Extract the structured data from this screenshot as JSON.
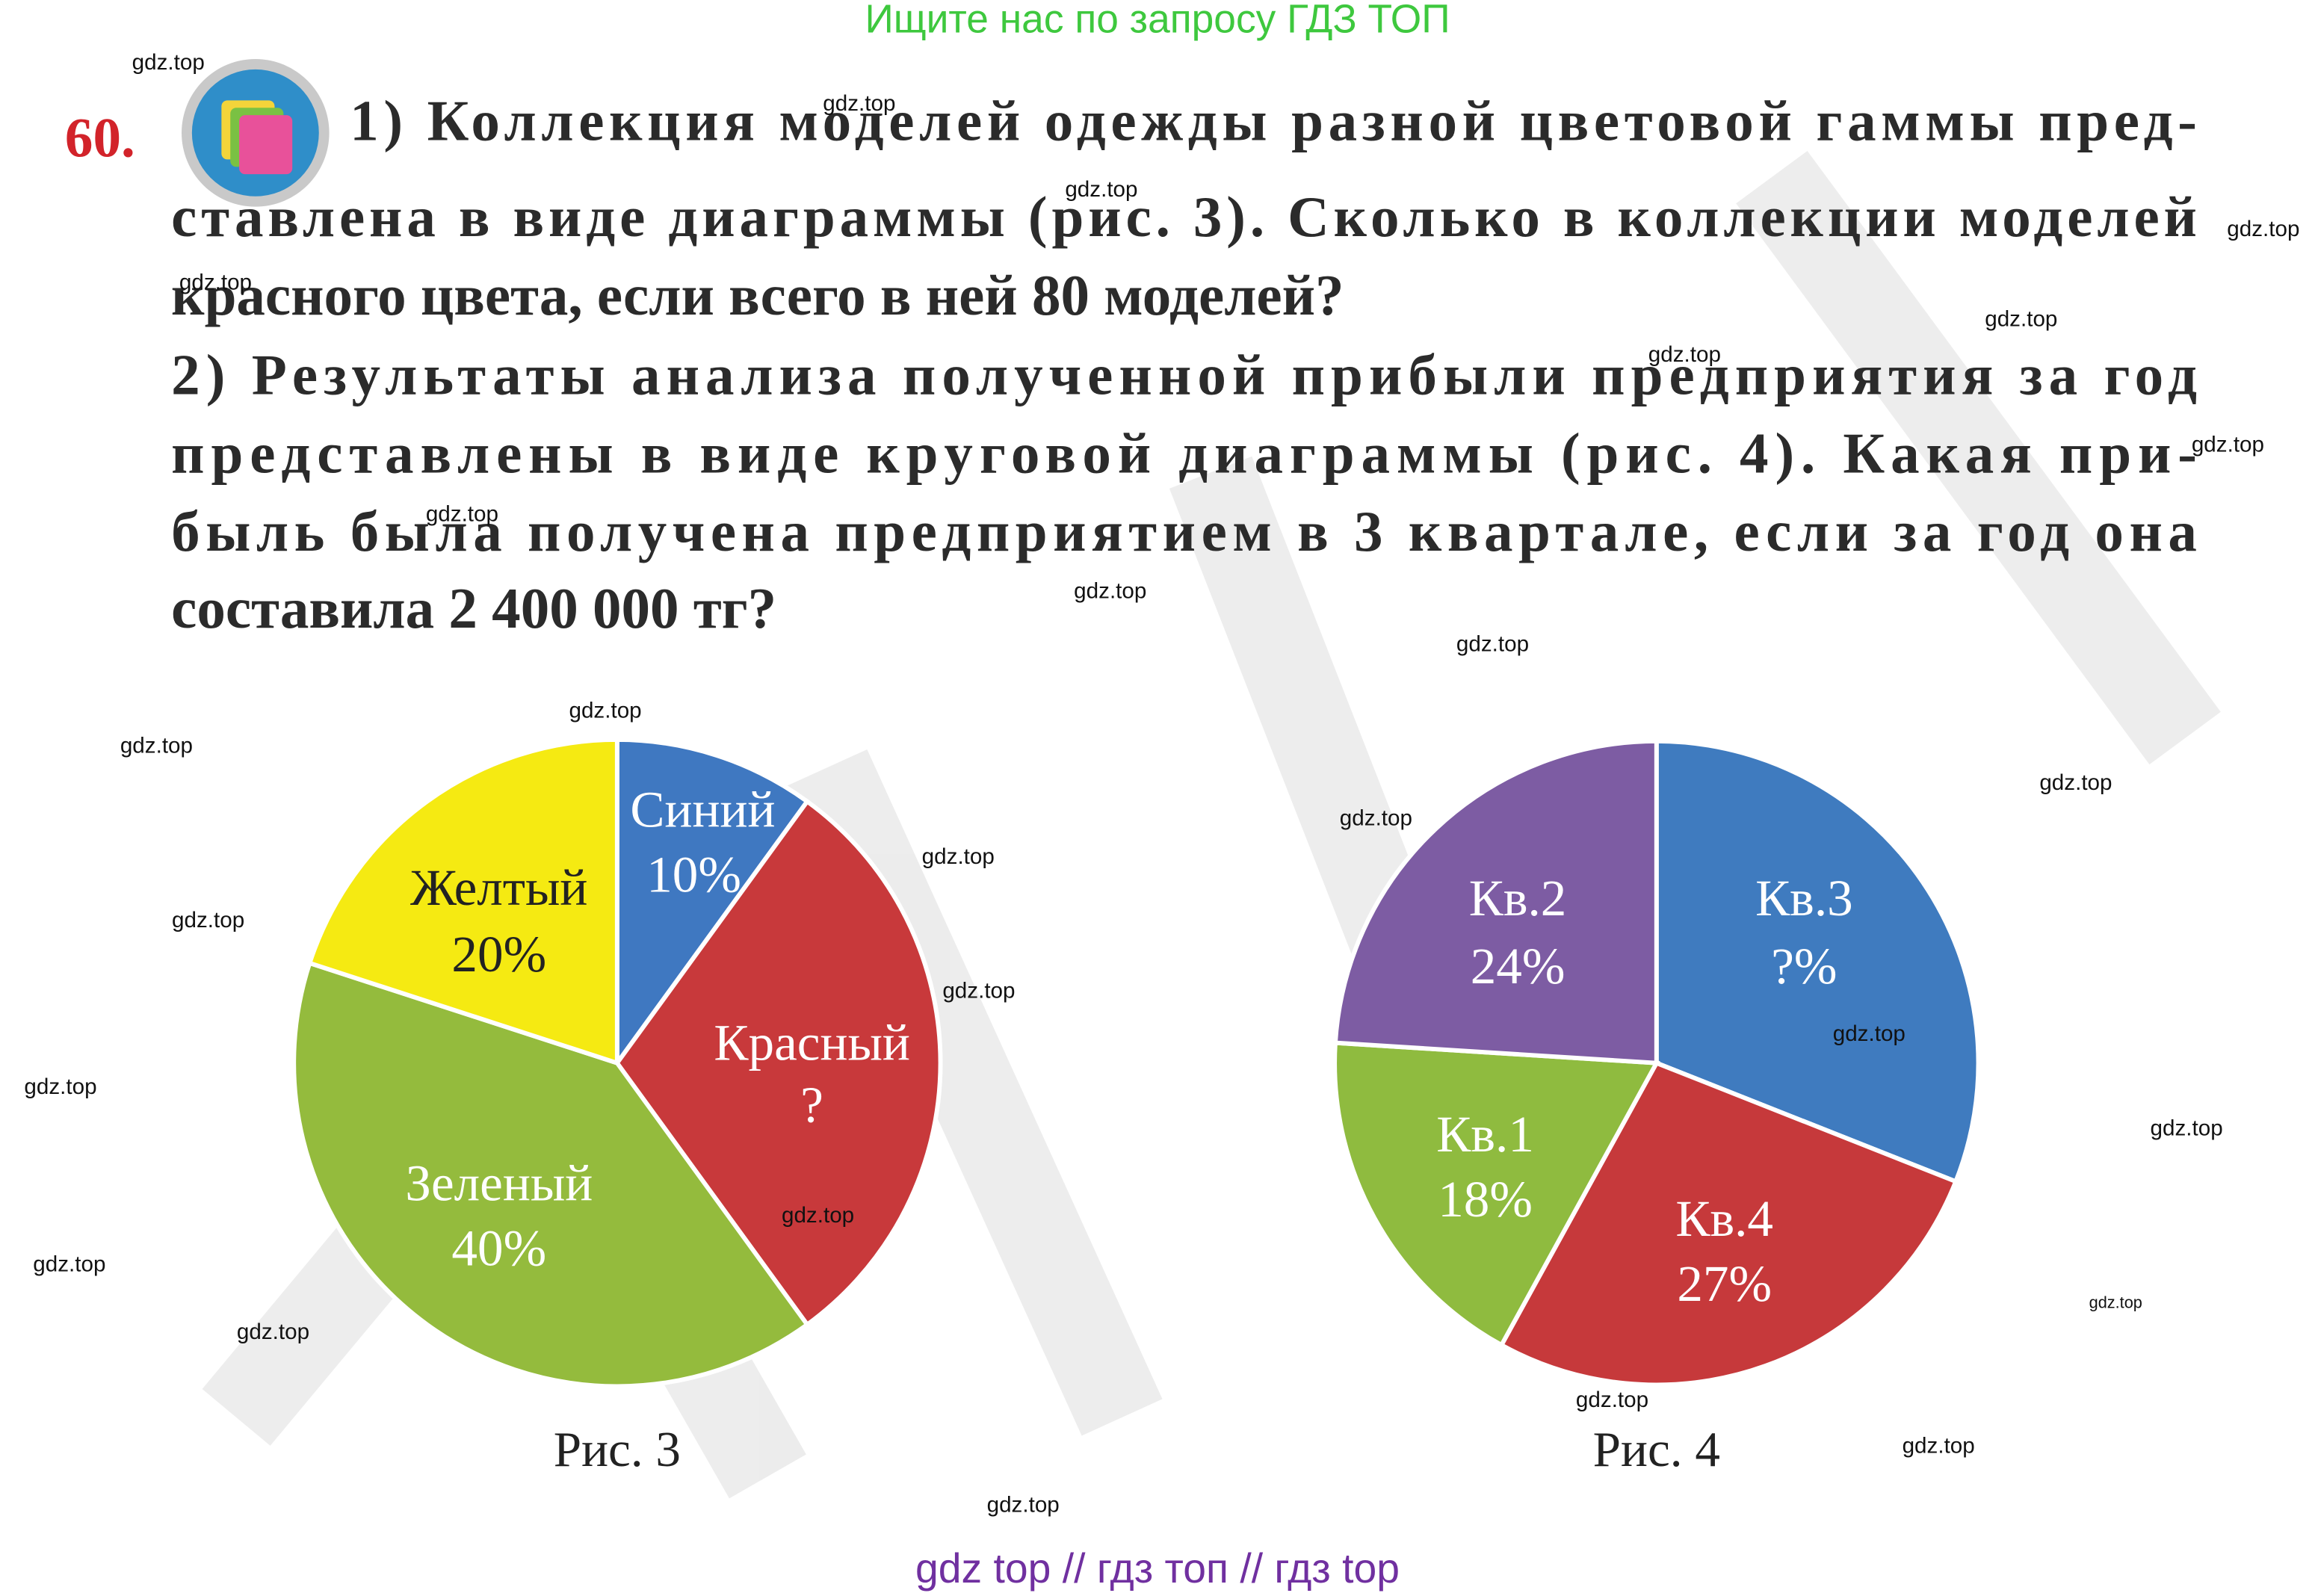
{
  "banner": "Ищите нас по запросу ГДЗ ТОП",
  "problem": {
    "number": "60.",
    "lines": [
      "1) Коллекция моделей одежды разной цветовой гаммы пред-",
      "ставлена в виде диаграммы (рис. 3). Сколько в коллекции моделей",
      "красного цвета, если всего в ней 80 моделей?",
      "2) Результаты анализа полученной прибыли предприятия за год",
      "представлены в виде круговой диаграммы (рис. 4). Какая при-",
      "быль была получена предприятием в 3 квартале, если за год она",
      "составила 2 400 000 тг?"
    ]
  },
  "figures": [
    {
      "type": "pie",
      "caption": "Рис. 3",
      "categories": [
        "Синий",
        "Красный",
        "Зеленый",
        "Желтый"
      ],
      "values": [
        10,
        30,
        40,
        20
      ],
      "value_labels": [
        "10%",
        "?",
        "40%",
        "20%"
      ],
      "colors": [
        "#3f78c1",
        "#c8393b",
        "#94bb3d",
        "#f5ea12"
      ]
    },
    {
      "type": "pie",
      "caption": "Рис. 4",
      "categories": [
        "Кв.3",
        "Кв.4",
        "Кв.1",
        "Кв.2"
      ],
      "values": [
        31,
        27,
        18,
        24
      ],
      "value_labels": [
        "?%",
        "27%",
        "18%",
        "24%"
      ],
      "colors": [
        "#3f7bbf",
        "#c6393b",
        "#8fbb3f",
        "#7d5ca3"
      ]
    }
  ],
  "watermarks": [
    "gdz.top",
    "gdz.top",
    "gdz.top",
    "gdz.top",
    "gdz.top",
    "gdz.top",
    "gdz.top",
    "gdz.top",
    "gdz.top",
    "gdz.top",
    "gdz.top",
    "gdz.top",
    "gdz.top",
    "gdz.top",
    "gdz.top",
    "gdz.top",
    "gdz.top",
    "gdz.top",
    "gdz.top",
    "gdz.top",
    "gdz.top",
    "gdz.top",
    "gdz.top",
    "gdz.top",
    "gdz.top",
    "gdz.top",
    "gdz.top",
    "gdz.top"
  ],
  "footer": "gdz top  //  гдз топ  //  гдз top"
}
